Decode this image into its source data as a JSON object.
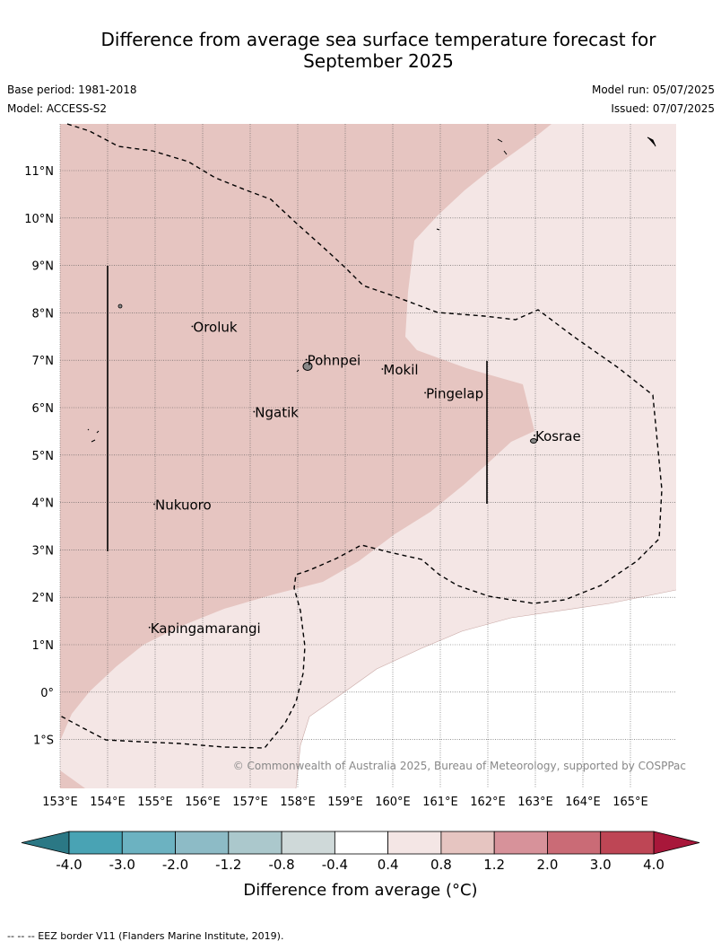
{
  "title_line1": "Difference from average sea surface temperature forecast for",
  "title_line2": "September 2025",
  "base_period": "Base period: 1981-2018",
  "model": "Model: ACCESS-S2",
  "model_run": "Model run: 05/07/2025",
  "issued": "Issued: 07/07/2025",
  "copyright": "© Commonwealth of Australia 2025, Bureau of Meteorology, supported by COSPPac",
  "lat_labels": [
    "11°N",
    "10°N",
    "9°N",
    "8°N",
    "7°N",
    "6°N",
    "5°N",
    "4°N",
    "3°N",
    "2°N",
    "1°N",
    "0°",
    "1°S"
  ],
  "lon_labels": [
    "153°E",
    "154°E",
    "155°E",
    "156°E",
    "157°E",
    "158°E",
    "159°E",
    "160°E",
    "161°E",
    "162°E",
    "163°E",
    "164°E",
    "165°E"
  ],
  "places": [
    {
      "name": "Oroluk",
      "lon": 155.8,
      "lat": 7.6
    },
    {
      "name": "Pohnpei",
      "lon": 158.2,
      "lat": 6.9
    },
    {
      "name": "Mokil",
      "lon": 159.8,
      "lat": 6.7
    },
    {
      "name": "Pingelap",
      "lon": 160.7,
      "lat": 6.2
    },
    {
      "name": "Ngatik",
      "lon": 157.1,
      "lat": 5.8
    },
    {
      "name": "Kosrae",
      "lon": 163.0,
      "lat": 5.3
    },
    {
      "name": "Nukuoro",
      "lon": 155.0,
      "lat": 3.85
    },
    {
      "name": "Kapingamarangi",
      "lon": 154.9,
      "lat": 1.25
    }
  ],
  "colorbar": {
    "ticks": [
      "-4.0",
      "-3.0",
      "-2.0",
      "-1.2",
      "-0.8",
      "-0.4",
      "0.4",
      "0.8",
      "1.2",
      "2.0",
      "3.0",
      "4.0"
    ],
    "colors": [
      "#49a3b4",
      "#6cb2c1",
      "#8dbbc6",
      "#abc8cc",
      "#cfd9d9",
      "#ffffff",
      "#f4e6e5",
      "#e6c5c1",
      "#d7929a",
      "#ca6b76",
      "#be4655"
    ],
    "under_color": "#2b7885",
    "over_color": "#a8173a",
    "label": "Difference from average (°C)"
  },
  "footer": "--  --  -- EEZ border V11 (Flanders Marine Institute, 2019)."
}
